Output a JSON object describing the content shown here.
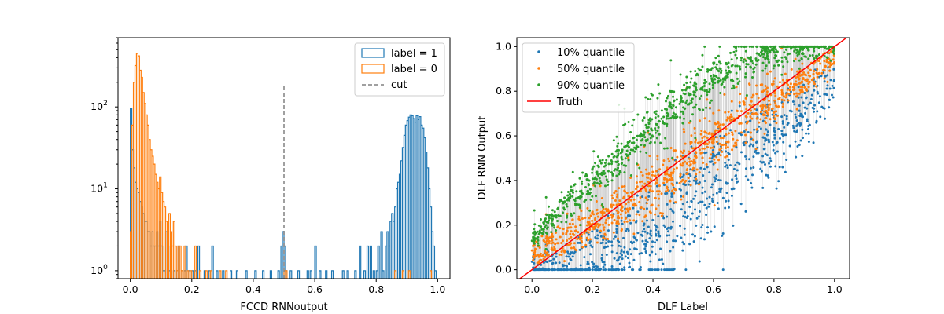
{
  "chart_data": [
    {
      "type": "histogram",
      "xlabel": "FCCD RNNoutput",
      "ylabel": "",
      "title": "",
      "xlim": [
        -0.04,
        1.04
      ],
      "yscale": "log",
      "ylim": [
        0.8,
        700
      ],
      "x_ticks": [
        "0.0",
        "0.2",
        "0.4",
        "0.6",
        "0.8",
        "1.0"
      ],
      "y_ticks": [
        "10^0",
        "10^1",
        "10^2"
      ],
      "legend": {
        "placement": "top-right",
        "entries": [
          "label = 1",
          "label = 0",
          "cut"
        ]
      },
      "bin_width": 0.005,
      "cut": {
        "x": 0.5,
        "y_top": 180,
        "color": "#808080",
        "style": "dashed"
      },
      "series": [
        {
          "name": "label = 1",
          "color": "#1f77b4",
          "bins": [
            [
              0.0,
              95
            ],
            [
              0.005,
              30
            ],
            [
              0.01,
              18
            ],
            [
              0.015,
              12
            ],
            [
              0.02,
              10
            ],
            [
              0.025,
              9
            ],
            [
              0.03,
              7
            ],
            [
              0.035,
              6
            ],
            [
              0.04,
              5
            ],
            [
              0.045,
              4
            ],
            [
              0.05,
              4
            ],
            [
              0.055,
              3
            ],
            [
              0.06,
              3
            ],
            [
              0.065,
              2
            ],
            [
              0.07,
              3
            ],
            [
              0.075,
              2
            ],
            [
              0.08,
              2
            ],
            [
              0.085,
              3
            ],
            [
              0.09,
              2
            ],
            [
              0.095,
              4
            ],
            [
              0.1,
              2
            ],
            [
              0.105,
              1
            ],
            [
              0.11,
              1
            ],
            [
              0.115,
              3
            ],
            [
              0.12,
              1
            ],
            [
              0.125,
              1
            ],
            [
              0.13,
              2
            ],
            [
              0.14,
              1
            ],
            [
              0.15,
              1
            ],
            [
              0.155,
              2
            ],
            [
              0.165,
              1
            ],
            [
              0.175,
              1
            ],
            [
              0.18,
              2
            ],
            [
              0.19,
              1
            ],
            [
              0.2,
              1
            ],
            [
              0.21,
              1
            ],
            [
              0.22,
              2
            ],
            [
              0.24,
              1
            ],
            [
              0.255,
              1
            ],
            [
              0.265,
              2
            ],
            [
              0.28,
              1
            ],
            [
              0.3,
              1
            ],
            [
              0.325,
              1
            ],
            [
              0.345,
              1
            ],
            [
              0.375,
              1
            ],
            [
              0.405,
              1
            ],
            [
              0.43,
              1
            ],
            [
              0.455,
              1
            ],
            [
              0.48,
              1
            ],
            [
              0.49,
              2
            ],
            [
              0.495,
              3
            ],
            [
              0.5,
              2
            ],
            [
              0.505,
              1
            ],
            [
              0.52,
              1
            ],
            [
              0.545,
              1
            ],
            [
              0.575,
              1
            ],
            [
              0.585,
              1
            ],
            [
              0.6,
              2
            ],
            [
              0.615,
              1
            ],
            [
              0.635,
              1
            ],
            [
              0.655,
              1
            ],
            [
              0.69,
              1
            ],
            [
              0.705,
              1
            ],
            [
              0.73,
              1
            ],
            [
              0.745,
              2
            ],
            [
              0.76,
              1
            ],
            [
              0.77,
              2
            ],
            [
              0.78,
              2
            ],
            [
              0.79,
              1
            ],
            [
              0.8,
              1
            ],
            [
              0.805,
              2
            ],
            [
              0.815,
              3
            ],
            [
              0.82,
              1
            ],
            [
              0.83,
              2
            ],
            [
              0.835,
              3
            ],
            [
              0.84,
              2
            ],
            [
              0.845,
              4
            ],
            [
              0.85,
              5
            ],
            [
              0.855,
              4
            ],
            [
              0.86,
              6
            ],
            [
              0.865,
              10
            ],
            [
              0.87,
              12
            ],
            [
              0.875,
              15
            ],
            [
              0.88,
              22
            ],
            [
              0.885,
              32
            ],
            [
              0.89,
              45
            ],
            [
              0.895,
              60
            ],
            [
              0.9,
              68
            ],
            [
              0.905,
              75
            ],
            [
              0.91,
              80
            ],
            [
              0.915,
              78
            ],
            [
              0.92,
              72
            ],
            [
              0.925,
              65
            ],
            [
              0.93,
              78
            ],
            [
              0.935,
              70
            ],
            [
              0.94,
              76
            ],
            [
              0.945,
              60
            ],
            [
              0.95,
              55
            ],
            [
              0.955,
              42
            ],
            [
              0.96,
              28
            ],
            [
              0.965,
              18
            ],
            [
              0.97,
              10
            ],
            [
              0.975,
              6
            ],
            [
              0.98,
              3
            ],
            [
              0.985,
              2
            ],
            [
              0.99,
              1
            ]
          ]
        },
        {
          "name": "label = 0",
          "color": "#ff7f0e",
          "bins": [
            [
              0.0,
              3
            ],
            [
              0.005,
              60
            ],
            [
              0.01,
              200
            ],
            [
              0.015,
              320
            ],
            [
              0.02,
              450
            ],
            [
              0.025,
              420
            ],
            [
              0.03,
              280
            ],
            [
              0.035,
              230
            ],
            [
              0.04,
              150
            ],
            [
              0.045,
              110
            ],
            [
              0.05,
              80
            ],
            [
              0.055,
              60
            ],
            [
              0.06,
              40
            ],
            [
              0.065,
              30
            ],
            [
              0.07,
              25
            ],
            [
              0.075,
              20
            ],
            [
              0.08,
              15
            ],
            [
              0.085,
              12
            ],
            [
              0.09,
              10
            ],
            [
              0.095,
              14
            ],
            [
              0.1,
              9
            ],
            [
              0.105,
              7
            ],
            [
              0.11,
              6
            ],
            [
              0.115,
              4
            ],
            [
              0.12,
              3
            ],
            [
              0.125,
              5
            ],
            [
              0.13,
              3
            ],
            [
              0.135,
              2
            ],
            [
              0.14,
              4
            ],
            [
              0.145,
              2
            ],
            [
              0.15,
              1
            ],
            [
              0.155,
              2
            ],
            [
              0.16,
              2
            ],
            [
              0.165,
              1
            ],
            [
              0.175,
              2
            ],
            [
              0.185,
              1
            ],
            [
              0.195,
              1
            ],
            [
              0.21,
              2
            ],
            [
              0.225,
              1
            ],
            [
              0.245,
              1
            ],
            [
              0.26,
              1
            ],
            [
              0.29,
              1
            ],
            [
              0.31,
              1
            ],
            [
              0.5,
              1
            ],
            [
              0.505,
              1
            ],
            [
              0.86,
              1
            ],
            [
              0.885,
              1
            ],
            [
              0.905,
              1
            ],
            [
              0.975,
              1
            ]
          ]
        }
      ]
    },
    {
      "type": "scatter",
      "xlabel": "DLF Label",
      "ylabel": "DLF RNN Output",
      "title": "",
      "xlim": [
        -0.05,
        1.05
      ],
      "ylim": [
        -0.04,
        1.04
      ],
      "x_ticks": [
        "0.0",
        "0.2",
        "0.4",
        "0.6",
        "0.8",
        "1.0"
      ],
      "y_ticks": [
        "0.0",
        "0.2",
        "0.4",
        "0.6",
        "0.8",
        "1.0"
      ],
      "legend": {
        "placement": "top-left",
        "entries": [
          "10% quantile",
          "50% quantile",
          "90% quantile",
          "Truth"
        ]
      },
      "truth_line": {
        "name": "Truth",
        "color": "#ff0000",
        "x": [
          -0.05,
          1.05
        ],
        "y": [
          -0.05,
          1.05
        ]
      },
      "error_bar_color": "#b0b0b0",
      "sample_count": 900,
      "series": [
        {
          "name": "10% quantile",
          "color": "#1f77b4",
          "curve": [
            [
              0.0,
              0.0
            ],
            [
              0.2,
              0.02
            ],
            [
              0.3,
              0.07
            ],
            [
              0.4,
              0.15
            ],
            [
              0.5,
              0.28
            ],
            [
              0.6,
              0.4
            ],
            [
              0.7,
              0.5
            ],
            [
              0.8,
              0.6
            ],
            [
              0.9,
              0.72
            ],
            [
              1.0,
              0.85
            ]
          ],
          "spread": 0.1
        },
        {
          "name": "50% quantile",
          "color": "#ff7f0e",
          "curve": [
            [
              0.0,
              0.07
            ],
            [
              0.2,
              0.19
            ],
            [
              0.4,
              0.37
            ],
            [
              0.6,
              0.57
            ],
            [
              0.8,
              0.76
            ],
            [
              1.0,
              0.96
            ]
          ],
          "spread": 0.05
        },
        {
          "name": "90% quantile",
          "color": "#2ca02c",
          "curve": [
            [
              0.0,
              0.13
            ],
            [
              0.1,
              0.28
            ],
            [
              0.2,
              0.4
            ],
            [
              0.3,
              0.52
            ],
            [
              0.4,
              0.64
            ],
            [
              0.5,
              0.75
            ],
            [
              0.6,
              0.86
            ],
            [
              0.7,
              0.94
            ],
            [
              0.8,
              0.98
            ],
            [
              0.9,
              0.99
            ],
            [
              1.0,
              0.995
            ]
          ],
          "spread": 0.04
        }
      ]
    }
  ]
}
